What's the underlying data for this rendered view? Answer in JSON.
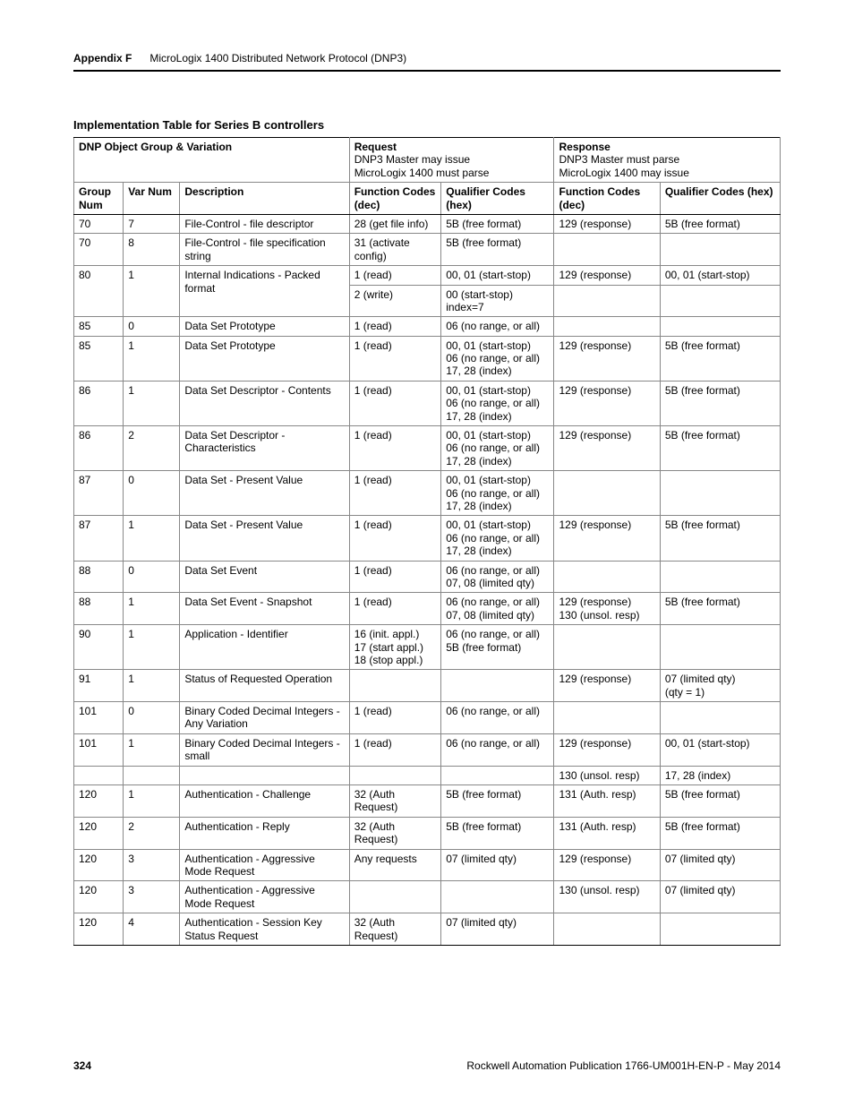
{
  "colors": {
    "text": "#000000",
    "rule": "#000000",
    "cell_border": "#888888",
    "background": "#ffffff"
  },
  "typography": {
    "base_fontsize_pt": 9,
    "header_fontsize_pt": 9,
    "title_fontsize_pt": 10,
    "running_head_fontsize_pt": 9,
    "font_family": "Arial, Helvetica, sans-serif"
  },
  "running_head": {
    "appendix": "Appendix F",
    "title": "MicroLogix 1400 Distributed Network Protocol (DNP3)"
  },
  "table": {
    "title": "Implementation Table for Series B controllers",
    "col_widths_pct": [
      7,
      8,
      24,
      13,
      16,
      15,
      17
    ],
    "header_group": {
      "dnp_object": "DNP Object Group & Variation",
      "request": {
        "title": "Request",
        "sub1": "DNP3 Master may issue",
        "sub2": "MicroLogix 1400 must parse"
      },
      "response": {
        "title": "Response",
        "sub1": "DNP3 Master must parse",
        "sub2": "MicroLogix 1400 may issue"
      }
    },
    "columns": [
      "Group Num",
      "Var Num",
      "Description",
      "Function Codes (dec)",
      "Qualifier Codes (hex)",
      "Function Codes (dec)",
      "Qualifier Codes (hex)"
    ],
    "rows": [
      {
        "group": "70",
        "var": "7",
        "desc": "File-Control - file descriptor",
        "req_fc": "28 (get file info)",
        "req_qc": "5B (free format)",
        "resp_fc": "129 (response)",
        "resp_qc": "5B (free format)"
      },
      {
        "group": "70",
        "var": "8",
        "desc": "File-Control - file specification string",
        "req_fc": "31 (activate config)",
        "req_qc": "5B (free format)",
        "resp_fc": "",
        "resp_qc": ""
      },
      {
        "group": "80",
        "var": "1",
        "desc": "Internal Indications - Packed format",
        "desc_rowspan": 2,
        "group_rowspan": 2,
        "var_rowspan": 2,
        "req_fc": "1 (read)",
        "req_qc": "00, 01 (start-stop)",
        "resp_fc": "129 (response)",
        "resp_qc": "00, 01 (start-stop)"
      },
      {
        "subrow": true,
        "req_fc": "2 (write)",
        "req_qc": "00 (start-stop)\nindex=7",
        "resp_fc": "",
        "resp_qc": ""
      },
      {
        "group": "85",
        "var": "0",
        "desc": "Data Set Prototype",
        "req_fc": "1 (read)",
        "req_qc": "06 (no range, or all)",
        "resp_fc": "",
        "resp_qc": ""
      },
      {
        "group": "85",
        "var": "1",
        "desc": "Data Set Prototype",
        "req_fc": "1 (read)",
        "req_qc": "00, 01 (start-stop)\n06 (no range, or all)\n17, 28 (index)",
        "resp_fc": "129 (response)",
        "resp_qc": "5B (free format)"
      },
      {
        "group": "86",
        "var": "1",
        "desc": "Data Set Descriptor - Contents",
        "req_fc": "1 (read)",
        "req_qc": "00, 01 (start-stop)\n06 (no range, or all)\n17, 28 (index)",
        "resp_fc": "129 (response)",
        "resp_qc": "5B (free format)"
      },
      {
        "group": "86",
        "var": "2",
        "desc": "Data Set Descriptor - Characteristics",
        "req_fc": "1 (read)",
        "req_qc": "00, 01 (start-stop)\n06 (no range, or all)\n17, 28 (index)",
        "resp_fc": "129 (response)",
        "resp_qc": "5B (free format)"
      },
      {
        "group": "87",
        "var": "0",
        "desc": "Data Set - Present Value",
        "req_fc": "1 (read)",
        "req_qc": "00, 01 (start-stop)\n06 (no range, or all)\n17, 28 (index)",
        "resp_fc": "",
        "resp_qc": ""
      },
      {
        "group": "87",
        "var": "1",
        "desc": "Data Set - Present Value",
        "req_fc": "1 (read)",
        "req_qc": "00, 01 (start-stop)\n06 (no range, or all)\n17, 28 (index)",
        "resp_fc": "129 (response)",
        "resp_qc": "5B (free format)"
      },
      {
        "group": "88",
        "var": "0",
        "desc": "Data Set Event",
        "req_fc": "1 (read)",
        "req_qc": "06 (no range, or all)\n07, 08 (limited qty)",
        "resp_fc": "",
        "resp_qc": ""
      },
      {
        "group": "88",
        "var": "1",
        "desc": "Data Set Event - Snapshot",
        "req_fc": "1 (read)",
        "req_qc": "06 (no range, or all)\n07, 08 (limited qty)",
        "resp_fc": "129 (response)\n130 (unsol. resp)",
        "resp_qc": "5B (free format)"
      },
      {
        "group": "90",
        "var": "1",
        "desc": "Application - Identifier",
        "req_fc": "16 (init. appl.)\n17 (start appl.)\n18 (stop appl.)",
        "req_qc": "06 (no range, or all)\n5B (free format)",
        "resp_fc": "",
        "resp_qc": ""
      },
      {
        "group": "91",
        "var": "1",
        "desc": "Status of Requested Operation",
        "req_fc": "",
        "req_qc": "",
        "resp_fc": "129 (response)",
        "resp_qc": "07 (limited qty)\n(qty = 1)"
      },
      {
        "group": "101",
        "var": "0",
        "desc": "Binary Coded Decimal Integers - Any Variation",
        "req_fc": "1 (read)",
        "req_qc": "06 (no range, or all)",
        "resp_fc": "",
        "resp_qc": ""
      },
      {
        "group": "101",
        "var": "1",
        "desc": "Binary Coded Decimal Integers - small",
        "req_fc": "1 (read)",
        "req_qc": "06 (no range, or all)",
        "resp_fc": "129 (response)",
        "resp_qc": "00, 01 (start-stop)"
      },
      {
        "group": "",
        "var": "",
        "desc": "",
        "req_fc": "",
        "req_qc": "",
        "resp_fc": "130 (unsol. resp)",
        "resp_qc": "17, 28 (index)"
      },
      {
        "group": "120",
        "var": "1",
        "desc": "Authentication - Challenge",
        "req_fc": "32 (Auth Request)",
        "req_qc": "5B (free format)",
        "resp_fc": "131 (Auth. resp)",
        "resp_qc": "5B (free format)"
      },
      {
        "group": "120",
        "var": "2",
        "desc": "Authentication - Reply",
        "req_fc": "32 (Auth Request)",
        "req_qc": "5B (free format)",
        "resp_fc": "131 (Auth. resp)",
        "resp_qc": "5B (free format)"
      },
      {
        "group": "120",
        "var": "3",
        "desc": "Authentication - Aggressive Mode Request",
        "req_fc": "Any requests",
        "req_qc": "07 (limited qty)",
        "resp_fc": "129 (response)",
        "resp_qc": "07 (limited qty)"
      },
      {
        "group": "120",
        "var": "3",
        "desc": "Authentication - Aggressive Mode Request",
        "req_fc": "",
        "req_qc": "",
        "resp_fc": "130 (unsol. resp)",
        "resp_qc": "07 (limited qty)"
      },
      {
        "group": "120",
        "var": "4",
        "desc": "Authentication - Session Key Status Request",
        "req_fc": "32 (Auth Request)",
        "req_qc": "07 (limited qty)",
        "resp_fc": "",
        "resp_qc": "",
        "last": true
      }
    ]
  },
  "footer": {
    "page_num": "324",
    "pub": "Rockwell Automation Publication 1766-UM001H-EN-P - May 2014"
  }
}
